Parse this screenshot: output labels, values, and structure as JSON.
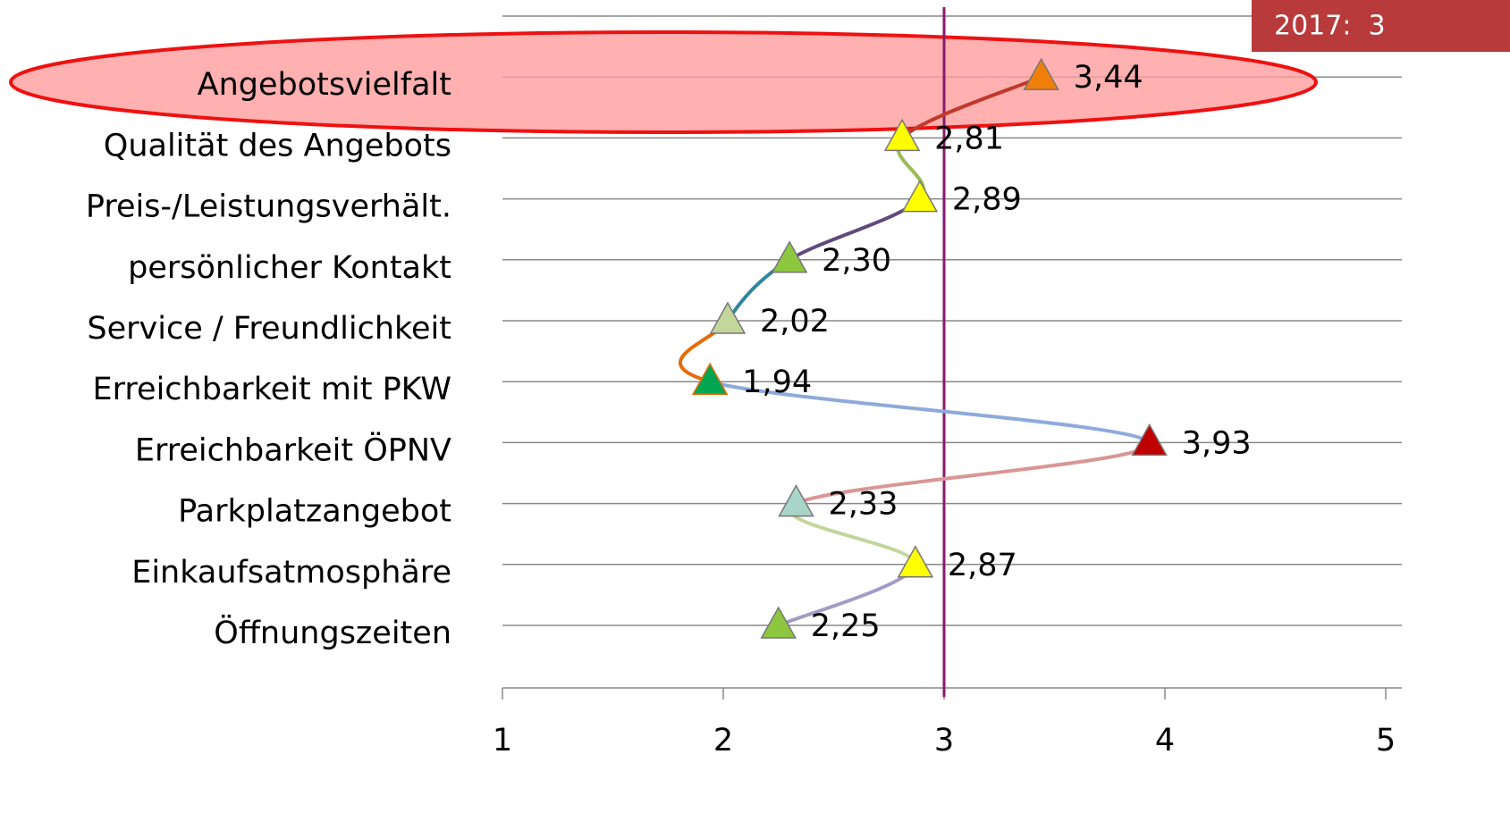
{
  "chart_data": {
    "type": "line",
    "categories": [
      "Angebotsvielfalt",
      "Qualität des Angebots",
      "Preis-/Leistungsverhält.",
      "persönlicher Kontakt",
      "Service / Freundlichkeit",
      "Erreichbarkeit mit PKW",
      "Erreichbarkeit ÖPNV",
      "Parkplatzangebot",
      "Einkaufsatmosphäre",
      "Öffnungszeiten"
    ],
    "values": [
      3.44,
      2.81,
      2.89,
      2.3,
      2.02,
      1.94,
      3.93,
      2.33,
      2.87,
      2.25
    ],
    "value_labels": [
      "3,44",
      "2,81",
      "2,89",
      "2,30",
      "2,02",
      "1,94",
      "3,93",
      "2,33",
      "2,87",
      "2,25"
    ],
    "marker_colors": [
      "#f07f09",
      "#ffff00",
      "#ffff00",
      "#8dc63f",
      "#c3d69b",
      "#00a651",
      "#c00000",
      "#a9d5c8",
      "#ffff00",
      "#8dc63f"
    ],
    "segment_colors": [
      "#c0392b",
      "#9bbb59",
      "#604a7b",
      "#31859c",
      "#e46c0a",
      "#8eaadb",
      "#d99694",
      "#c3d69b",
      "#a49bc6"
    ],
    "xlim": [
      1,
      5
    ],
    "xticks": [
      1,
      2,
      3,
      4,
      5
    ],
    "grid": true,
    "reference_line": 3,
    "reference_color": "#8b1a6b",
    "annotation": "2017:  3"
  }
}
